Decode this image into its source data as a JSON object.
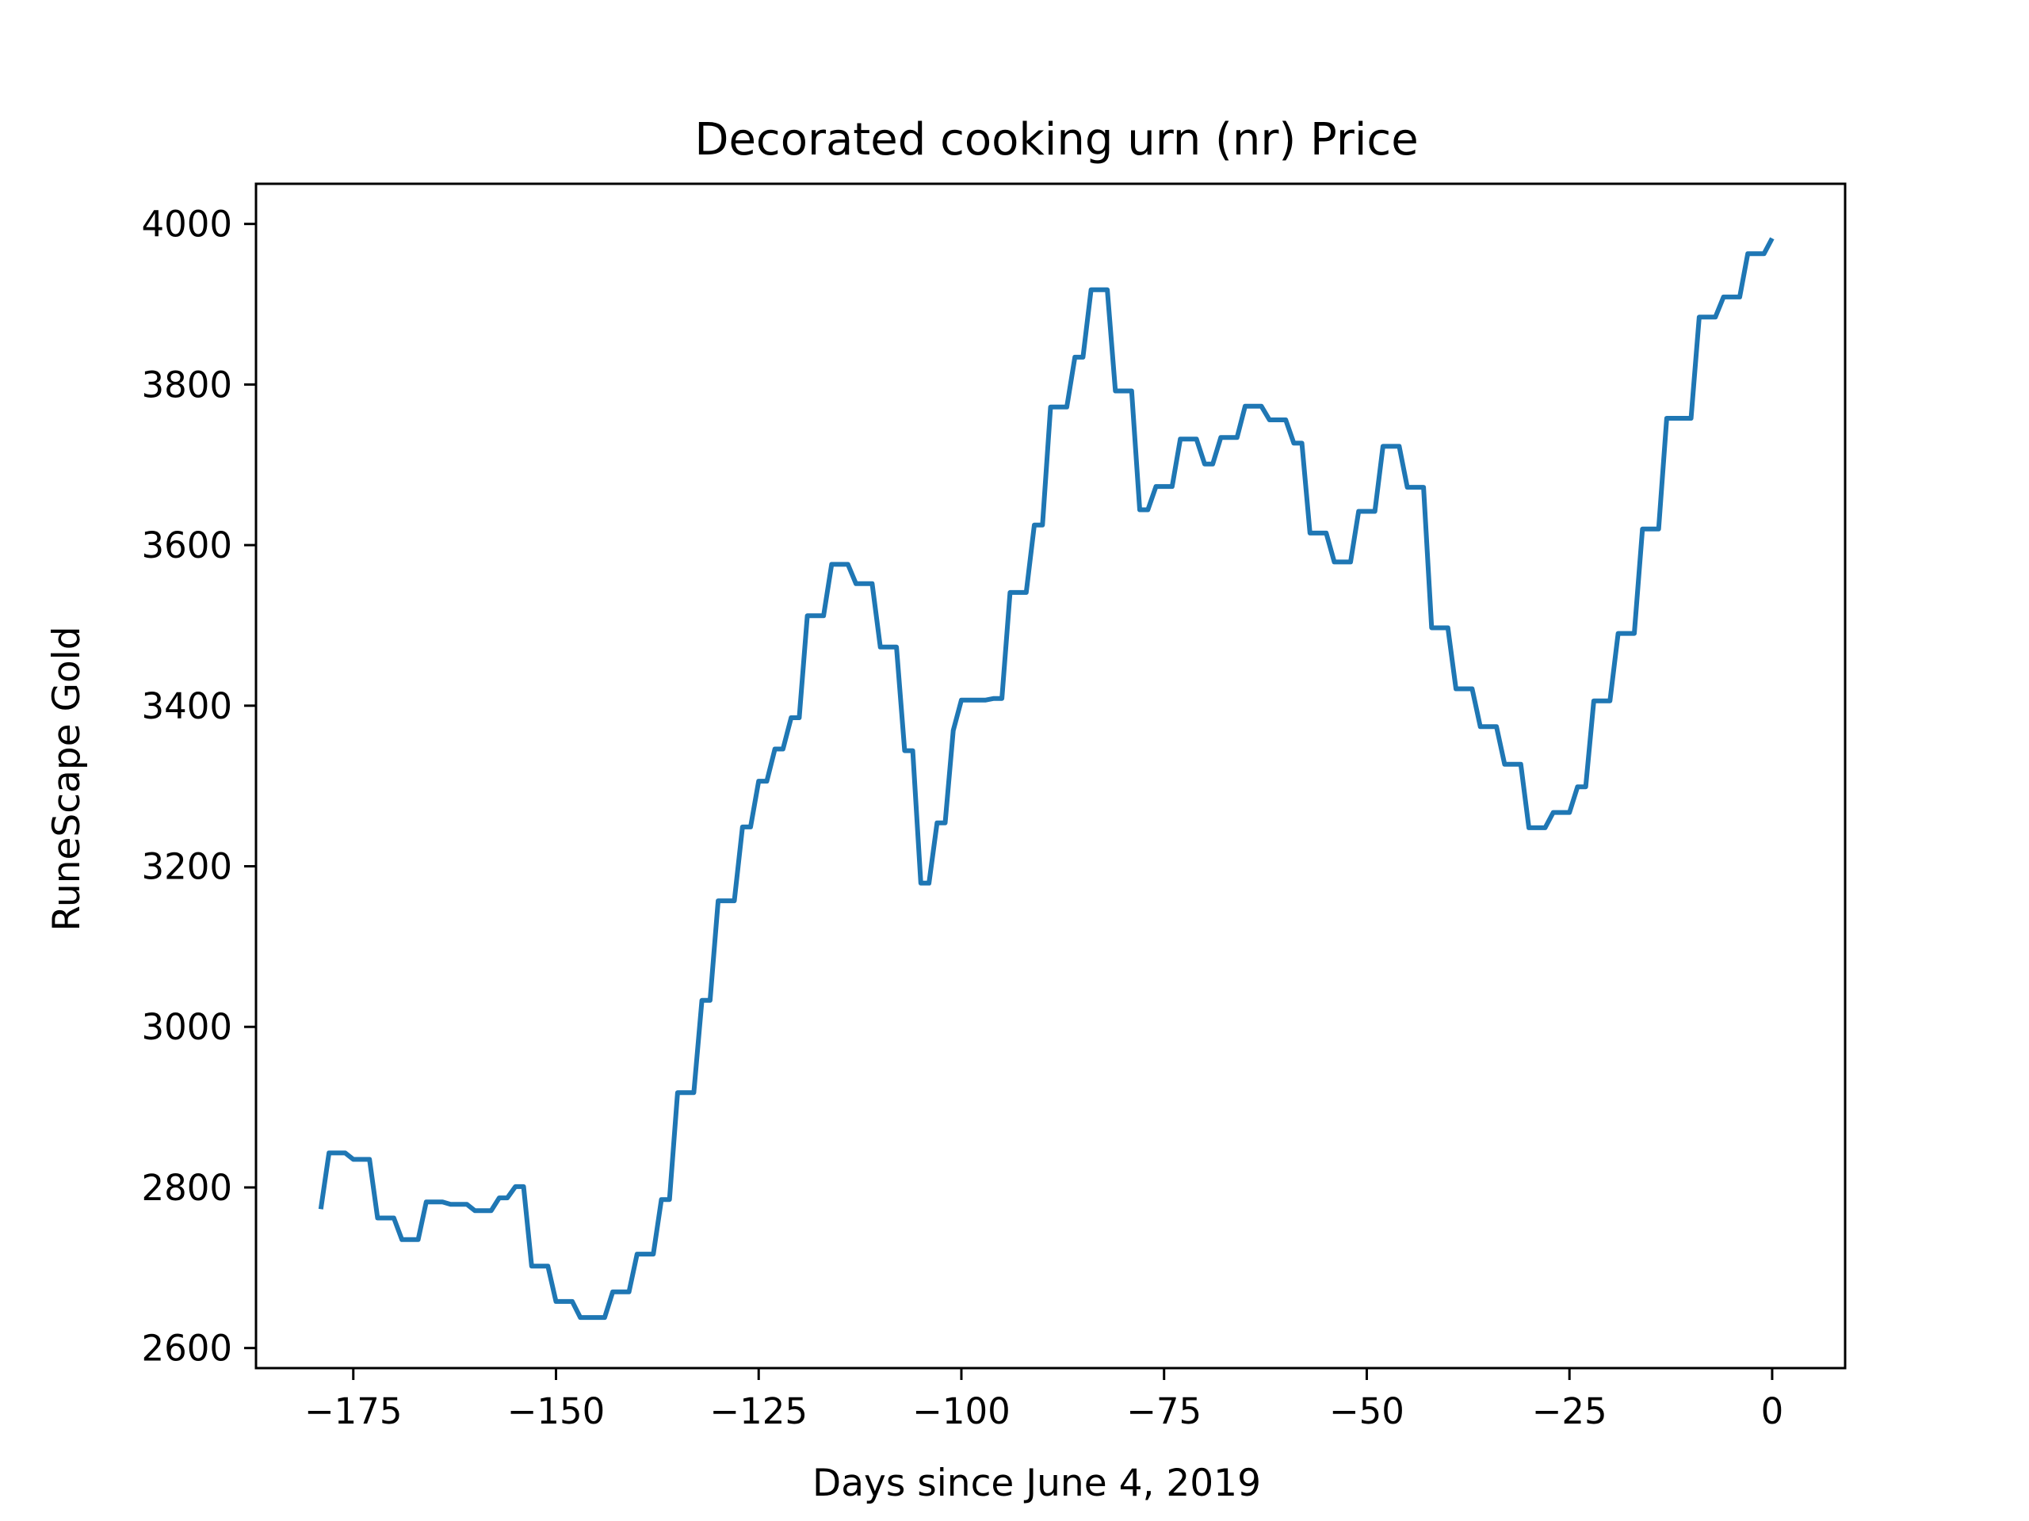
{
  "chart_data": {
    "type": "line",
    "title": "Decorated cooking urn (nr) Price",
    "xlabel": "Days since June 4, 2019",
    "ylabel": "RuneScape Gold",
    "xlim": [
      -187,
      9
    ],
    "ylim": [
      2575,
      4050
    ],
    "xticks": [
      -175,
      -150,
      -125,
      -100,
      -75,
      -50,
      -25,
      0
    ],
    "xtick_labels": [
      "−175",
      "−150",
      "−125",
      "−100",
      "−75",
      "−50",
      "−25",
      "0"
    ],
    "yticks": [
      2600,
      2800,
      3000,
      3200,
      3400,
      3600,
      3800,
      4000
    ],
    "ytick_labels": [
      "2600",
      "2800",
      "3000",
      "3200",
      "3400",
      "3600",
      "3800",
      "4000"
    ],
    "grid": false,
    "legend": "none",
    "line_color": "#1f77b4",
    "series": [
      {
        "x": [
          -179,
          -178,
          -177,
          -176,
          -175,
          -174,
          -173,
          -172,
          -171,
          -170,
          -169,
          -168,
          -167,
          -166,
          -165,
          -164,
          -163,
          -162,
          -161,
          -160,
          -159,
          -158,
          -157,
          -156,
          -155,
          -154,
          -153,
          -152,
          -151,
          -150,
          -149,
          -148,
          -147,
          -146,
          -145,
          -144,
          -143,
          -142,
          -141,
          -140,
          -139,
          -138,
          -137,
          -136,
          -135,
          -134,
          -133,
          -132,
          -131,
          -130,
          -129,
          -128,
          -127,
          -126,
          -125,
          -124,
          -123,
          -122,
          -121,
          -120,
          -119,
          -118,
          -117,
          -116,
          -115,
          -114,
          -113,
          -112,
          -111,
          -110,
          -109,
          -108,
          -107,
          -106,
          -105,
          -104,
          -103,
          -102,
          -101,
          -100,
          -99,
          -98,
          -97,
          -96,
          -95,
          -94,
          -93,
          -92,
          -91,
          -90,
          -89,
          -88,
          -87,
          -86,
          -85,
          -84,
          -83,
          -82,
          -81,
          -80,
          -79,
          -78,
          -77,
          -76,
          -75,
          -74,
          -73,
          -72,
          -71,
          -70,
          -69,
          -68,
          -67,
          -66,
          -65,
          -64,
          -63,
          -62,
          -61,
          -60,
          -59,
          -58,
          -57,
          -56,
          -55,
          -54,
          -53,
          -52,
          -51,
          -50,
          -49,
          -48,
          -47,
          -46,
          -45,
          -44,
          -43,
          -42,
          -41,
          -40,
          -39,
          -38,
          -37,
          -36,
          -35,
          -34,
          -33,
          -32,
          -31,
          -30,
          -29,
          -28,
          -27,
          -26,
          -25,
          -24,
          -23,
          -22,
          -21,
          -20,
          -19,
          -18,
          -17,
          -16,
          -15,
          -14,
          -13,
          -12,
          -11,
          -10,
          -9,
          -8,
          -7,
          -6,
          -5,
          -4,
          -3,
          -2,
          -1,
          0
        ],
        "y": [
          2773,
          2843,
          2843,
          2843,
          2835,
          2835,
          2835,
          2762,
          2762,
          2762,
          2735,
          2735,
          2735,
          2782,
          2782,
          2782,
          2779,
          2779,
          2779,
          2771,
          2771,
          2771,
          2787,
          2787,
          2801,
          2801,
          2702,
          2702,
          2702,
          2658,
          2658,
          2658,
          2638,
          2638,
          2638,
          2638,
          2670,
          2670,
          2670,
          2717,
          2717,
          2717,
          2785,
          2785,
          2918,
          2918,
          2918,
          3033,
          3033,
          3157,
          3157,
          3157,
          3249,
          3249,
          3306,
          3306,
          3346,
          3346,
          3385,
          3385,
          3512,
          3512,
          3512,
          3576,
          3576,
          3576,
          3552,
          3552,
          3552,
          3473,
          3473,
          3473,
          3344,
          3344,
          3179,
          3179,
          3254,
          3254,
          3369,
          3407,
          3407,
          3407,
          3407,
          3409,
          3409,
          3541,
          3541,
          3541,
          3625,
          3625,
          3772,
          3772,
          3772,
          3834,
          3834,
          3918,
          3918,
          3918,
          3792,
          3792,
          3792,
          3644,
          3644,
          3673,
          3673,
          3673,
          3732,
          3732,
          3732,
          3701,
          3701,
          3734,
          3734,
          3734,
          3773,
          3773,
          3773,
          3756,
          3756,
          3756,
          3727,
          3727,
          3615,
          3615,
          3615,
          3579,
          3579,
          3579,
          3642,
          3642,
          3642,
          3723,
          3723,
          3723,
          3672,
          3672,
          3672,
          3497,
          3497,
          3497,
          3421,
          3421,
          3421,
          3374,
          3374,
          3374,
          3327,
          3327,
          3327,
          3248,
          3248,
          3248,
          3267,
          3267,
          3267,
          3299,
          3299,
          3406,
          3406,
          3406,
          3490,
          3490,
          3490,
          3620,
          3620,
          3620,
          3758,
          3758,
          3758,
          3758,
          3884,
          3884,
          3884,
          3909,
          3909,
          3909,
          3963,
          3963,
          3963,
          3982
        ]
      }
    ]
  }
}
